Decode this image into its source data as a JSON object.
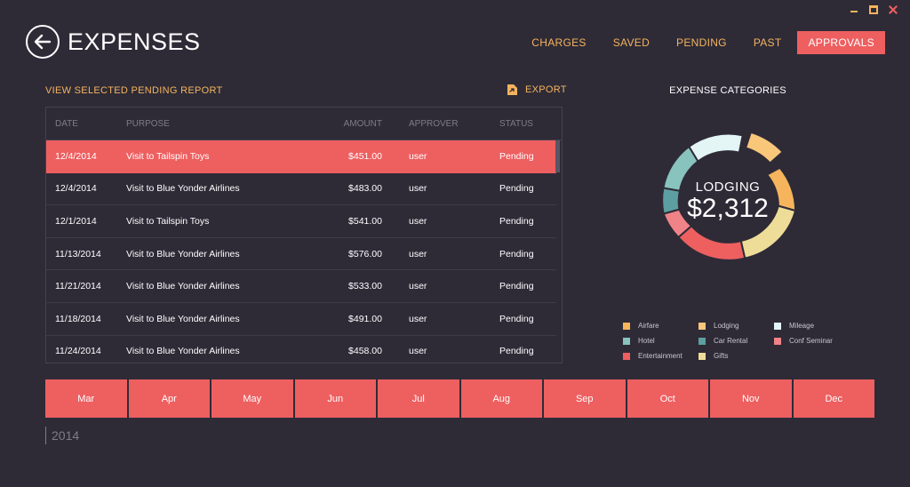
{
  "app": {
    "title": "EXPENSES"
  },
  "nav": {
    "items": [
      {
        "label": "CHARGES",
        "active": false
      },
      {
        "label": "SAVED",
        "active": false
      },
      {
        "label": "PENDING",
        "active": false
      },
      {
        "label": "PAST",
        "active": false
      },
      {
        "label": "APPROVALS",
        "active": true
      }
    ]
  },
  "report": {
    "title": "VIEW SELECTED PENDING REPORT",
    "export_label": "EXPORT"
  },
  "table": {
    "headers": {
      "date": "DATE",
      "purpose": "PURPOSE",
      "amount": "AMOUNT",
      "approver": "APPROVER",
      "status": "STATUS"
    },
    "rows": [
      {
        "date": "12/4/2014",
        "purpose": "Visit to Tailspin Toys",
        "amount": "$451.00",
        "approver": "user",
        "status": "Pending"
      },
      {
        "date": "12/4/2014",
        "purpose": "Visit to Blue Yonder Airlines",
        "amount": "$483.00",
        "approver": "user",
        "status": "Pending"
      },
      {
        "date": "12/1/2014",
        "purpose": "Visit to Tailspin Toys",
        "amount": "$541.00",
        "approver": "user",
        "status": "Pending"
      },
      {
        "date": "11/13/2014",
        "purpose": "Visit to Blue Yonder Airlines",
        "amount": "$576.00",
        "approver": "user",
        "status": "Pending"
      },
      {
        "date": "11/21/2014",
        "purpose": "Visit to Blue Yonder Airlines",
        "amount": "$533.00",
        "approver": "user",
        "status": "Pending"
      },
      {
        "date": "11/18/2014",
        "purpose": "Visit to Blue Yonder Airlines",
        "amount": "$491.00",
        "approver": "user",
        "status": "Pending"
      },
      {
        "date": "11/24/2014",
        "purpose": "Visit to Blue Yonder Airlines",
        "amount": "$458.00",
        "approver": "user",
        "status": "Pending"
      }
    ],
    "selected_index": 0
  },
  "chart": {
    "title": "EXPENSE CATEGORIES",
    "center_label": "LODGING",
    "center_value": "$2,312",
    "legend": [
      {
        "label": "Airfare",
        "color": "#f6b45c"
      },
      {
        "label": "Lodging",
        "color": "#f8c77a"
      },
      {
        "label": "Mileage",
        "color": "#e4f5f5"
      },
      {
        "label": "Hotel",
        "color": "#88c3bd"
      },
      {
        "label": "Car Rental",
        "color": "#5d9ea1"
      },
      {
        "label": "Conf Seminar",
        "color": "#f08388"
      },
      {
        "label": "Entertainment",
        "color": "#ee5f60"
      },
      {
        "label": "Gifts",
        "color": "#eedd98"
      }
    ]
  },
  "timeline": {
    "months": [
      "Mar",
      "Apr",
      "May",
      "Jun",
      "Jul",
      "Aug",
      "Sep",
      "Oct",
      "Nov",
      "Dec"
    ],
    "year": "2014"
  },
  "colors": {
    "background": "#2e2b37",
    "accent": "#ee5f60",
    "highlight": "#f4b35e"
  }
}
